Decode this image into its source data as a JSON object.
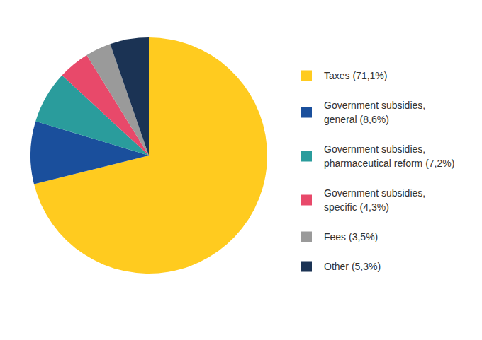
{
  "chart_data": {
    "type": "pie",
    "categories": [
      "Taxes (71,1%)",
      "Government subsidies, general (8,6%)",
      "Government subsidies, pharmaceutical reform (7,2%)",
      "Government subsidies, specific (4,3%)",
      "Fees (3,5%)",
      "Other (5,3%)"
    ],
    "values": [
      71.1,
      8.6,
      7.2,
      4.3,
      3.5,
      5.3
    ],
    "colors": [
      "#FFCB1F",
      "#1A4F9C",
      "#2A9C9C",
      "#E8496A",
      "#9A9A9A",
      "#1B3354"
    ],
    "legend": "right"
  }
}
